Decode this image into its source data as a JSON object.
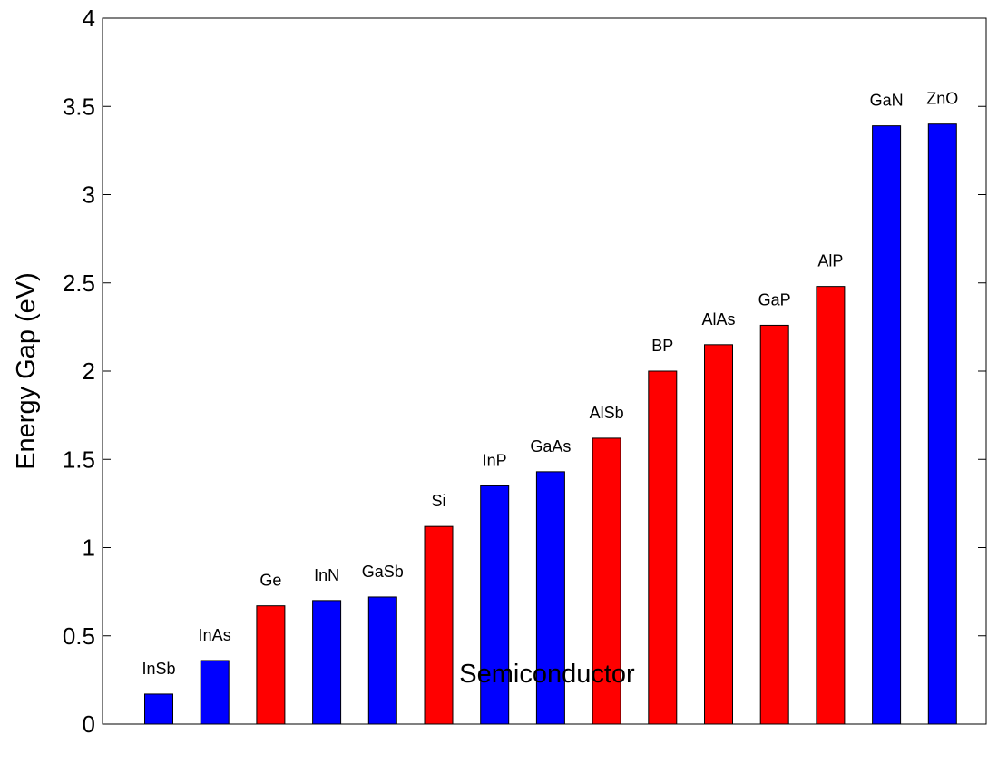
{
  "chart_data": {
    "type": "bar",
    "title": "",
    "xlabel": "Semiconductor",
    "ylabel": "Energy Gap (eV)",
    "ylim": [
      0,
      4
    ],
    "yticks": [
      "0",
      "0.5",
      "1",
      "1.5",
      "2",
      "2.5",
      "3",
      "3.5",
      "4"
    ],
    "grid": false,
    "categories": [
      "InSb",
      "InAs",
      "Ge",
      "InN",
      "GaSb",
      "Si",
      "InP",
      "GaAs",
      "AlSb",
      "BP",
      "AlAs",
      "GaP",
      "AlP",
      "GaN",
      "ZnO"
    ],
    "values": [
      0.17,
      0.36,
      0.67,
      0.7,
      0.72,
      1.12,
      1.35,
      1.43,
      1.62,
      2.0,
      2.15,
      2.26,
      2.48,
      3.39,
      3.4
    ],
    "bar_colors": [
      "#0000ff",
      "#0000ff",
      "#ff0000",
      "#0000ff",
      "#0000ff",
      "#ff0000",
      "#0000ff",
      "#0000ff",
      "#ff0000",
      "#ff0000",
      "#ff0000",
      "#ff0000",
      "#ff0000",
      "#0000ff",
      "#0000ff"
    ]
  }
}
